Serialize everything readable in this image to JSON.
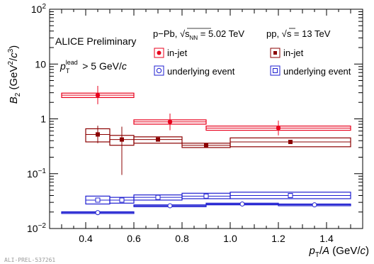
{
  "chart_data": {
    "type": "scatter",
    "title": "",
    "xlabel": "p_T/A (GeV/c)",
    "ylabel": "B_2 (GeV^2/c^3)",
    "xlim": [
      0.25,
      1.55
    ],
    "ylim": [
      0.01,
      100
    ],
    "yscale": "log",
    "grid": false,
    "legend_position": "top",
    "x_ticks": [
      "0.4",
      "0.6",
      "0.8",
      "1.0",
      "1.2",
      "1.4"
    ],
    "y_ticks": [
      {
        "value": 0.01,
        "base": "10",
        "exp": "−2"
      },
      {
        "value": 0.1,
        "base": "10",
        "exp": "−1"
      },
      {
        "value": 1,
        "base": "1",
        "exp": ""
      },
      {
        "value": 10,
        "base": "10",
        "exp": ""
      },
      {
        "value": 100,
        "base": "10",
        "exp": "2"
      }
    ],
    "annotations": {
      "preliminary": "ALICE Preliminary",
      "cut_p": "p",
      "cut_sup": "lead",
      "cut_sub": "T",
      "cut_rest": " > 5 GeV/",
      "cut_unit": "c",
      "system1": "p−Pb, √s",
      "system1_sub": "NN",
      "system1_energy": " = 5.02 TeV",
      "system2": "pp, √s = 13 TeV",
      "figure_id": "ALI-PREL-537261"
    },
    "series": [
      {
        "name": "in-jet",
        "system": "p−Pb",
        "color": "#e8001c",
        "marker": "filled-circle",
        "points": [
          {
            "x": 0.45,
            "x_lo": 0.3,
            "x_hi": 0.6,
            "y": 2.7,
            "stat_lo": 1.85,
            "stat_hi": 4.0,
            "sys_lo": 2.45,
            "sys_hi": 2.95
          },
          {
            "x": 0.75,
            "x_lo": 0.6,
            "x_hi": 0.9,
            "y": 0.88,
            "stat_lo": 0.62,
            "stat_hi": 1.25,
            "sys_lo": 0.8,
            "sys_hi": 0.96
          },
          {
            "x": 1.2,
            "x_lo": 0.9,
            "x_hi": 1.5,
            "y": 0.68,
            "stat_lo": 0.5,
            "stat_hi": 0.93,
            "sys_lo": 0.62,
            "sys_hi": 0.74
          }
        ]
      },
      {
        "name": "in-jet",
        "system": "pp",
        "color": "#8b0000",
        "marker": "filled-square",
        "points": [
          {
            "x": 0.45,
            "x_lo": 0.4,
            "x_hi": 0.5,
            "y": 0.52,
            "stat_lo": 0.36,
            "stat_hi": 0.75,
            "sys_lo": 0.38,
            "sys_hi": 0.66
          },
          {
            "x": 0.55,
            "x_lo": 0.5,
            "x_hi": 0.6,
            "y": 0.42,
            "stat_lo": 0.095,
            "stat_hi": 0.72,
            "sys_lo": 0.33,
            "sys_hi": 0.5
          },
          {
            "x": 0.7,
            "x_lo": 0.6,
            "x_hi": 0.8,
            "y": 0.42,
            "stat_lo": 0.4,
            "stat_hi": 0.44,
            "sys_lo": 0.36,
            "sys_hi": 0.47
          },
          {
            "x": 0.9,
            "x_lo": 0.8,
            "x_hi": 1.0,
            "y": 0.33,
            "stat_lo": 0.32,
            "stat_hi": 0.34,
            "sys_lo": 0.3,
            "sys_hi": 0.36
          },
          {
            "x": 1.25,
            "x_lo": 1.0,
            "x_hi": 1.5,
            "y": 0.38,
            "stat_lo": 0.37,
            "stat_hi": 0.39,
            "sys_lo": 0.31,
            "sys_hi": 0.45
          }
        ]
      },
      {
        "name": "underlying event",
        "system": "p−Pb",
        "color": "#1f1fd0",
        "marker": "open-circle",
        "points": [
          {
            "x": 0.45,
            "x_lo": 0.3,
            "x_hi": 0.6,
            "y": 0.0195,
            "stat_lo": 0.0192,
            "stat_hi": 0.0198,
            "sys_lo": 0.0188,
            "sys_hi": 0.0202
          },
          {
            "x": 0.75,
            "x_lo": 0.6,
            "x_hi": 0.9,
            "y": 0.026,
            "stat_lo": 0.0256,
            "stat_hi": 0.0264,
            "sys_lo": 0.025,
            "sys_hi": 0.027
          },
          {
            "x": 1.05,
            "x_lo": 0.9,
            "x_hi": 1.2,
            "y": 0.028,
            "stat_lo": 0.0276,
            "stat_hi": 0.0284,
            "sys_lo": 0.027,
            "sys_hi": 0.029
          },
          {
            "x": 1.35,
            "x_lo": 1.2,
            "x_hi": 1.5,
            "y": 0.027,
            "stat_lo": 0.0266,
            "stat_hi": 0.0274,
            "sys_lo": 0.026,
            "sys_hi": 0.028
          }
        ]
      },
      {
        "name": "underlying event",
        "system": "pp",
        "color": "#1f1fd0",
        "marker": "open-square",
        "points": [
          {
            "x": 0.45,
            "x_lo": 0.4,
            "x_hi": 0.5,
            "y": 0.033,
            "stat_lo": 0.032,
            "stat_hi": 0.034,
            "sys_lo": 0.028,
            "sys_hi": 0.039
          },
          {
            "x": 0.55,
            "x_lo": 0.5,
            "x_hi": 0.6,
            "y": 0.033,
            "stat_lo": 0.032,
            "stat_hi": 0.034,
            "sys_lo": 0.029,
            "sys_hi": 0.037
          },
          {
            "x": 0.7,
            "x_lo": 0.6,
            "x_hi": 0.8,
            "y": 0.037,
            "stat_lo": 0.036,
            "stat_hi": 0.038,
            "sys_lo": 0.033,
            "sys_hi": 0.041
          },
          {
            "x": 0.9,
            "x_lo": 0.8,
            "x_hi": 1.0,
            "y": 0.039,
            "stat_lo": 0.038,
            "stat_hi": 0.04,
            "sys_lo": 0.035,
            "sys_hi": 0.044
          },
          {
            "x": 1.25,
            "x_lo": 1.0,
            "x_hi": 1.5,
            "y": 0.04,
            "stat_lo": 0.039,
            "stat_hi": 0.041,
            "sys_lo": 0.035,
            "sys_hi": 0.046
          }
        ]
      }
    ]
  }
}
